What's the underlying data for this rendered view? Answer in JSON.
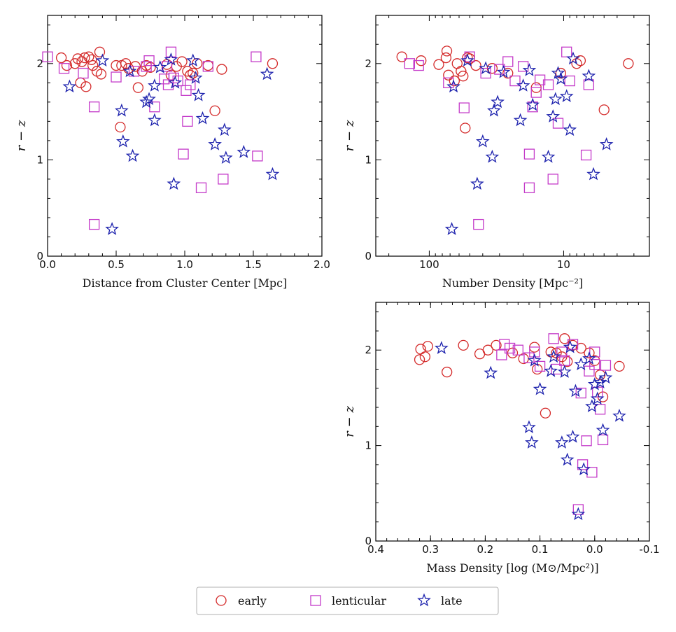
{
  "colors": {
    "early": "#d42a2a",
    "lenticular": "#c43ac9",
    "late": "#1c21ad"
  },
  "legend": {
    "placement": "bottom-center",
    "entries": [
      {
        "key": "early",
        "label": "early",
        "marker": "circle"
      },
      {
        "key": "lenticular",
        "label": "lenticular",
        "marker": "square"
      },
      {
        "key": "late",
        "label": "late",
        "marker": "star"
      }
    ]
  },
  "chart_data": [
    {
      "type": "scatter",
      "xlabel": "Distance from Cluster Center [Mpc]",
      "ylabel": "r − z",
      "xlim": [
        0,
        2.0
      ],
      "ylim": [
        0,
        2.5
      ],
      "xticks": [
        0,
        0.5,
        1.0,
        1.5,
        2.0
      ],
      "xtick_labels": [
        "0.0",
        "0.5",
        "1.0",
        "1.5",
        "2.0"
      ],
      "yticks": [
        0,
        1,
        2
      ],
      "ytick_labels": [
        "0",
        "1",
        "2"
      ],
      "series": [
        {
          "key": "early",
          "x": [
            0.1,
            0.14,
            0.2,
            0.22,
            0.24,
            0.25,
            0.27,
            0.28,
            0.3,
            0.32,
            0.33,
            0.36,
            0.38,
            0.39,
            0.5,
            0.53,
            0.54,
            0.57,
            0.59,
            0.64,
            0.66,
            0.69,
            0.72,
            0.75,
            0.87,
            0.9,
            0.94,
            0.98,
            1.02,
            1.04,
            1.06,
            1.09,
            1.17,
            1.22,
            1.27,
            1.64
          ],
          "y": [
            2.06,
            1.98,
            2.0,
            2.05,
            1.8,
            2.02,
            2.06,
            1.76,
            2.07,
            2.04,
            1.98,
            1.92,
            2.12,
            1.89,
            1.98,
            1.34,
            1.98,
            2.0,
            1.95,
            1.97,
            1.75,
            1.92,
            1.98,
            1.96,
            1.99,
            1.88,
            1.97,
            2.02,
            1.92,
            1.88,
            1.9,
            2.0,
            1.98,
            1.51,
            1.94,
            2.0
          ]
        },
        {
          "key": "lenticular",
          "x": [
            0.0,
            0.12,
            0.26,
            0.34,
            0.34,
            0.5,
            0.63,
            0.72,
            0.74,
            0.78,
            0.85,
            0.87,
            0.88,
            0.9,
            0.92,
            0.95,
            0.99,
            1.01,
            1.02,
            1.04,
            1.12,
            1.17,
            1.28,
            1.52,
            1.53
          ],
          "y": [
            2.07,
            1.95,
            1.9,
            0.33,
            1.55,
            1.86,
            1.92,
            1.97,
            2.03,
            1.55,
            1.84,
            1.97,
            1.78,
            2.12,
            1.85,
            1.82,
            1.06,
            1.72,
            1.4,
            1.78,
            0.71,
            1.97,
            0.8,
            2.07,
            1.04
          ]
        },
        {
          "key": "late",
          "x": [
            0.16,
            0.4,
            0.47,
            0.54,
            0.55,
            0.62,
            0.6,
            0.72,
            0.74,
            0.78,
            0.78,
            0.82,
            0.9,
            0.92,
            0.93,
            1.06,
            1.08,
            1.1,
            1.13,
            1.22,
            1.29,
            1.3,
            1.43,
            1.6,
            1.64
          ],
          "y": [
            1.76,
            2.03,
            0.28,
            1.51,
            1.19,
            1.04,
            1.92,
            1.6,
            1.63,
            1.77,
            1.41,
            1.96,
            2.04,
            0.75,
            1.8,
            2.03,
            1.85,
            1.67,
            1.43,
            1.16,
            1.31,
            1.02,
            1.08,
            1.89,
            0.85
          ]
        }
      ]
    },
    {
      "type": "scatter",
      "xscale": "log",
      "xaxis_inverted": true,
      "xlabel": "Number Density [Mpc⁻²]",
      "ylabel": "r − z",
      "xlim": [
        250,
        2.3
      ],
      "ylim": [
        0,
        2.5
      ],
      "xticks": [
        100,
        10
      ],
      "xtick_labels": [
        "100",
        "10"
      ],
      "yticks": [
        0,
        1,
        2
      ],
      "ytick_labels": [
        "0",
        "1",
        "2"
      ],
      "series": [
        {
          "key": "early",
          "x": [
            160,
            115,
            85,
            75,
            74,
            72,
            65,
            62,
            58,
            56,
            54,
            52,
            50,
            45,
            34,
            26,
            16,
            10.5,
            8,
            7.5,
            5,
            3.3
          ],
          "y": [
            2.07,
            2.03,
            1.99,
            2.06,
            2.13,
            1.88,
            1.82,
            2.0,
            1.92,
            1.87,
            1.33,
            2.06,
            2.05,
            1.98,
            1.95,
            1.9,
            1.75,
            1.9,
            2.0,
            2.03,
            1.52,
            2.0
          ]
        },
        {
          "key": "lenticular",
          "x": [
            140,
            120,
            72,
            55,
            50,
            43,
            38,
            30,
            26,
            23,
            20,
            18,
            18,
            17,
            16,
            15,
            13,
            12,
            11,
            9.5,
            9,
            6.8,
            6.5
          ],
          "y": [
            2.0,
            1.98,
            1.8,
            1.54,
            2.07,
            0.33,
            1.9,
            1.94,
            2.02,
            1.82,
            1.97,
            1.06,
            0.71,
            1.55,
            1.7,
            1.83,
            1.78,
            0.8,
            1.38,
            2.12,
            1.82,
            1.05,
            1.78
          ]
        },
        {
          "key": "late",
          "x": [
            68,
            66,
            52,
            44,
            40,
            38,
            34,
            33,
            31,
            28,
            21,
            20,
            18,
            17,
            13,
            12,
            11.5,
            11,
            10.5,
            9.5,
            9,
            8.5,
            6.5,
            6,
            4.8
          ],
          "y": [
            0.28,
            1.76,
            2.03,
            0.75,
            1.19,
            1.95,
            1.03,
            1.51,
            1.6,
            1.91,
            1.41,
            1.77,
            1.93,
            1.57,
            1.03,
            1.45,
            1.63,
            1.9,
            1.84,
            1.66,
            1.31,
            2.05,
            1.87,
            0.85,
            1.16
          ]
        }
      ]
    },
    {
      "type": "scatter",
      "xaxis_inverted": true,
      "xlabel": "Mass Density [log (M⊙/Mpc²)]",
      "ylabel": "r − z",
      "xlim": [
        0.4,
        -0.1
      ],
      "ylim": [
        0,
        2.5
      ],
      "xticks": [
        0.4,
        0.3,
        0.2,
        0.1,
        0.0,
        -0.1
      ],
      "xtick_labels": [
        "0.4",
        "0.3",
        "0.2",
        "0.1",
        "0.0",
        "-0.1"
      ],
      "yticks": [
        0,
        1,
        2
      ],
      "ytick_labels": [
        "0",
        "1",
        "2"
      ],
      "series": [
        {
          "key": "early",
          "x": [
            0.32,
            0.318,
            0.31,
            0.305,
            0.27,
            0.24,
            0.21,
            0.195,
            0.18,
            0.15,
            0.13,
            0.11,
            0.105,
            0.09,
            0.08,
            0.07,
            0.06,
            0.055,
            0.05,
            0.04,
            0.025,
            0.01,
            0.0,
            -0.01,
            -0.015,
            -0.045
          ],
          "y": [
            1.9,
            2.01,
            1.93,
            2.04,
            1.77,
            2.05,
            1.96,
            2.0,
            2.05,
            1.97,
            1.91,
            2.03,
            1.8,
            1.34,
            1.98,
            1.97,
            1.93,
            2.12,
            1.88,
            2.05,
            2.02,
            1.97,
            1.89,
            1.74,
            1.51,
            1.83
          ]
        },
        {
          "key": "lenticular",
          "x": [
            0.17,
            0.165,
            0.155,
            0.14,
            0.12,
            0.11,
            0.1,
            0.075,
            0.07,
            0.06,
            0.055,
            0.04,
            0.03,
            0.025,
            0.022,
            0.015,
            0.01,
            0.005,
            0.0,
            0.0,
            -0.005,
            -0.01,
            -0.015,
            -0.02
          ],
          "y": [
            1.95,
            2.06,
            2.02,
            2.0,
            1.92,
            1.98,
            1.83,
            2.12,
            1.8,
            1.98,
            1.89,
            2.06,
            0.33,
            1.55,
            0.8,
            1.05,
            1.78,
            0.72,
            1.98,
            1.85,
            1.56,
            1.38,
            1.06,
            1.84
          ]
        },
        {
          "key": "late",
          "x": [
            0.28,
            0.19,
            0.12,
            0.115,
            0.11,
            0.1,
            0.08,
            0.075,
            0.06,
            0.055,
            0.05,
            0.045,
            0.04,
            0.035,
            0.03,
            0.025,
            0.02,
            0.01,
            0.005,
            0.0,
            -0.005,
            -0.01,
            -0.015,
            -0.02,
            -0.045
          ],
          "y": [
            2.02,
            1.76,
            1.19,
            1.03,
            1.89,
            1.59,
            1.78,
            1.93,
            1.03,
            1.77,
            0.85,
            2.03,
            1.09,
            1.57,
            0.28,
            1.85,
            0.75,
            1.91,
            1.41,
            1.64,
            1.49,
            1.66,
            1.16,
            1.71,
            1.31
          ]
        }
      ]
    }
  ]
}
